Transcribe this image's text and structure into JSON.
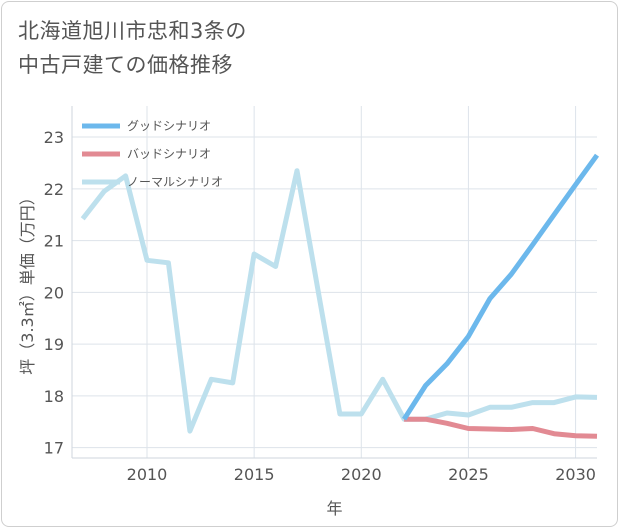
{
  "title": {
    "line1": "北海道旭川市忠和3条の",
    "line2": "中古戸建ての価格推移"
  },
  "chart_data": {
    "type": "line",
    "title": "北海道旭川市忠和3条の中古戸建ての価格推移",
    "xlabel": "年",
    "ylabel": "坪（3.3㎡）単価（万円）",
    "xlim": [
      2006.5,
      2031
    ],
    "ylim": [
      16.8,
      23.6
    ],
    "xticks": [
      2010,
      2015,
      2020,
      2025,
      2030
    ],
    "yticks": [
      17,
      18,
      19,
      20,
      21,
      22,
      23
    ],
    "grid": true,
    "legend_position": "top-left",
    "series": [
      {
        "name": "グッドシナリオ",
        "color": "#6cb8ec",
        "x": [
          2022,
          2023,
          2024,
          2025,
          2026,
          2027,
          2028,
          2029,
          2030,
          2031
        ],
        "values": [
          17.55,
          18.2,
          18.62,
          19.15,
          19.88,
          20.35,
          20.92,
          21.5,
          22.08,
          22.65
        ]
      },
      {
        "name": "バッドシナリオ",
        "color": "#e28a93",
        "x": [
          2022,
          2023,
          2024,
          2025,
          2026,
          2027,
          2028,
          2029,
          2030,
          2031
        ],
        "values": [
          17.55,
          17.55,
          17.47,
          17.37,
          17.36,
          17.35,
          17.37,
          17.27,
          17.23,
          17.22
        ]
      },
      {
        "name": "ノーマルシナリオ",
        "color": "#bde0ed",
        "x": [
          2007,
          2008,
          2009,
          2010,
          2011,
          2012,
          2013,
          2014,
          2015,
          2016,
          2017,
          2018,
          2019,
          2020,
          2021,
          2022,
          2023,
          2024,
          2025,
          2026,
          2027,
          2028,
          2029,
          2030,
          2031
        ],
        "values": [
          21.42,
          21.95,
          22.25,
          20.62,
          20.57,
          17.32,
          18.32,
          18.25,
          20.74,
          20.5,
          22.35,
          20.0,
          17.65,
          17.65,
          18.32,
          17.55,
          17.55,
          17.67,
          17.63,
          17.78,
          17.78,
          17.87,
          17.87,
          17.98,
          17.97
        ]
      }
    ]
  }
}
